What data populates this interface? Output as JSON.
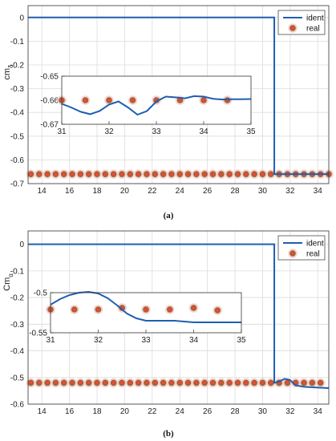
{
  "chart_data": [
    {
      "type": "line",
      "caption": "(a)",
      "ylabel_main": "cm",
      "ylabel_sub": "δ",
      "xlim": [
        13,
        34.8
      ],
      "ylim": [
        -0.7,
        0.05
      ],
      "xticks": [
        14,
        16,
        18,
        20,
        22,
        24,
        26,
        28,
        30,
        32,
        34
      ],
      "yticks": [
        0,
        -0.1,
        -0.2,
        -0.3,
        -0.4,
        -0.5,
        -0.6,
        -0.7
      ],
      "ytick_labels": [
        "0",
        "-0.1",
        "-0.2",
        "-0.3",
        "-0.4",
        "-0.5",
        "-0.6",
        "-0.7"
      ],
      "legend": [
        "ident",
        "real"
      ],
      "series": [
        {
          "name": "ident",
          "x": [
            13,
            30.85,
            30.85,
            34.8
          ],
          "y": [
            0,
            0,
            -0.66,
            -0.66
          ]
        },
        {
          "name": "real",
          "x": [
            13.2,
            13.8,
            14.4,
            15,
            15.6,
            16.2,
            16.8,
            17.4,
            18,
            18.6,
            19.2,
            19.8,
            20.4,
            21,
            21.6,
            22.2,
            22.8,
            23.4,
            24,
            24.6,
            25.2,
            25.8,
            26.4,
            27,
            27.6,
            28.2,
            28.8,
            29.4,
            30,
            30.6,
            31.2,
            31.8,
            32.4,
            33,
            33.6,
            34.2,
            34.8
          ],
          "y": [
            -0.66,
            -0.66,
            -0.66,
            -0.66,
            -0.66,
            -0.66,
            -0.66,
            -0.66,
            -0.66,
            -0.66,
            -0.66,
            -0.66,
            -0.66,
            -0.66,
            -0.66,
            -0.66,
            -0.66,
            -0.66,
            -0.66,
            -0.66,
            -0.66,
            -0.66,
            -0.66,
            -0.66,
            -0.66,
            -0.66,
            -0.66,
            -0.66,
            -0.66,
            -0.66,
            -0.66,
            -0.66,
            -0.66,
            -0.66,
            -0.66,
            -0.66,
            -0.66
          ]
        }
      ],
      "inset": {
        "xlim": [
          31,
          35
        ],
        "ylim": [
          -0.67,
          -0.65
        ],
        "xticks": [
          31,
          32,
          33,
          34,
          35
        ],
        "yticks": [
          -0.65,
          -0.66,
          -0.67
        ],
        "ytick_labels": [
          "-0.65",
          "-0.66",
          "-0.67"
        ],
        "ident": {
          "x": [
            31,
            31.2,
            31.4,
            31.6,
            31.8,
            32,
            32.2,
            32.4,
            32.6,
            32.8,
            33,
            33.2,
            33.4,
            33.6,
            33.8,
            34,
            34.2,
            34.4,
            34.6,
            34.8,
            35
          ],
          "y": [
            -0.6615,
            -0.663,
            -0.6648,
            -0.6658,
            -0.6645,
            -0.6618,
            -0.6605,
            -0.663,
            -0.666,
            -0.6645,
            -0.6605,
            -0.6585,
            -0.6588,
            -0.6592,
            -0.6583,
            -0.6585,
            -0.6594,
            -0.6597,
            -0.6596,
            -0.6596,
            -0.6595
          ]
        },
        "real": {
          "x": [
            31,
            31.5,
            32,
            32.5,
            33,
            33.5,
            34,
            34.5
          ],
          "y": [
            -0.66,
            -0.66,
            -0.66,
            -0.66,
            -0.66,
            -0.66,
            -0.66,
            -0.66
          ]
        }
      }
    },
    {
      "type": "line",
      "caption": "(b)",
      "ylabel_main": "Cm",
      "ylabel_sub": "α",
      "xlim": [
        13,
        34.8
      ],
      "ylim": [
        -0.6,
        0.05
      ],
      "xticks": [
        14,
        16,
        18,
        20,
        22,
        24,
        26,
        28,
        30,
        32,
        34
      ],
      "yticks": [
        0,
        -0.1,
        -0.2,
        -0.3,
        -0.4,
        -0.5,
        -0.6
      ],
      "ytick_labels": [
        "0",
        "-0.1",
        "-0.2",
        "-0.3",
        "-0.4",
        "-0.5",
        "-0.6"
      ],
      "legend": [
        "ident",
        "real"
      ],
      "series": [
        {
          "name": "ident",
          "x": [
            13,
            30.85,
            30.85,
            31.2,
            31.6,
            32,
            32.4,
            33,
            34,
            34.8
          ],
          "y": [
            0,
            0,
            -0.52,
            -0.515,
            -0.505,
            -0.51,
            -0.53,
            -0.535,
            -0.538,
            -0.54
          ]
        },
        {
          "name": "real",
          "x": [
            13.2,
            13.8,
            14.4,
            15,
            15.6,
            16.2,
            16.8,
            17.4,
            18,
            18.6,
            19.2,
            19.8,
            20.4,
            21,
            21.6,
            22.2,
            22.8,
            23.4,
            24,
            24.6,
            25.2,
            25.8,
            26.4,
            27,
            27.6,
            28.2,
            28.8,
            29.4,
            30,
            30.6,
            31.2,
            31.8,
            32.4,
            33,
            33.6,
            34.2
          ],
          "y": [
            -0.52,
            -0.52,
            -0.52,
            -0.52,
            -0.52,
            -0.52,
            -0.52,
            -0.52,
            -0.52,
            -0.52,
            -0.52,
            -0.52,
            -0.52,
            -0.52,
            -0.52,
            -0.52,
            -0.52,
            -0.52,
            -0.52,
            -0.52,
            -0.52,
            -0.52,
            -0.52,
            -0.52,
            -0.52,
            -0.52,
            -0.52,
            -0.52,
            -0.52,
            -0.52,
            -0.52,
            -0.52,
            -0.52,
            -0.52,
            -0.52,
            -0.52
          ]
        }
      ],
      "inset": {
        "xlim": [
          31,
          35
        ],
        "ylim": [
          -0.55,
          -0.5
        ],
        "xticks": [
          31,
          32,
          33,
          34,
          35
        ],
        "yticks": [
          -0.5,
          -0.55
        ],
        "ytick_labels": [
          "-0.5",
          "-0.55"
        ],
        "ident": {
          "x": [
            31,
            31.2,
            31.4,
            31.6,
            31.8,
            32,
            32.2,
            32.4,
            32.6,
            32.8,
            33,
            33.2,
            33.4,
            33.6,
            33.8,
            34,
            34.2,
            34.4,
            34.6,
            34.8,
            35
          ],
          "y": [
            -0.515,
            -0.508,
            -0.503,
            -0.5,
            -0.499,
            -0.501,
            -0.507,
            -0.516,
            -0.526,
            -0.532,
            -0.535,
            -0.535,
            -0.535,
            -0.535,
            -0.536,
            -0.537,
            -0.537,
            -0.537,
            -0.537,
            -0.537,
            -0.537
          ]
        },
        "real": {
          "x": [
            31,
            31.5,
            32,
            32.5,
            33,
            33.5,
            34,
            34.5
          ],
          "y": [
            -0.521,
            -0.521,
            -0.521,
            -0.519,
            -0.521,
            -0.521,
            -0.519,
            -0.522
          ]
        }
      }
    }
  ],
  "colors": {
    "ident": "#1f5fb0",
    "marker_fill": "#e24b3a",
    "marker_edge": "#8a6a2a",
    "marker_halo": "#f4c7c7"
  }
}
